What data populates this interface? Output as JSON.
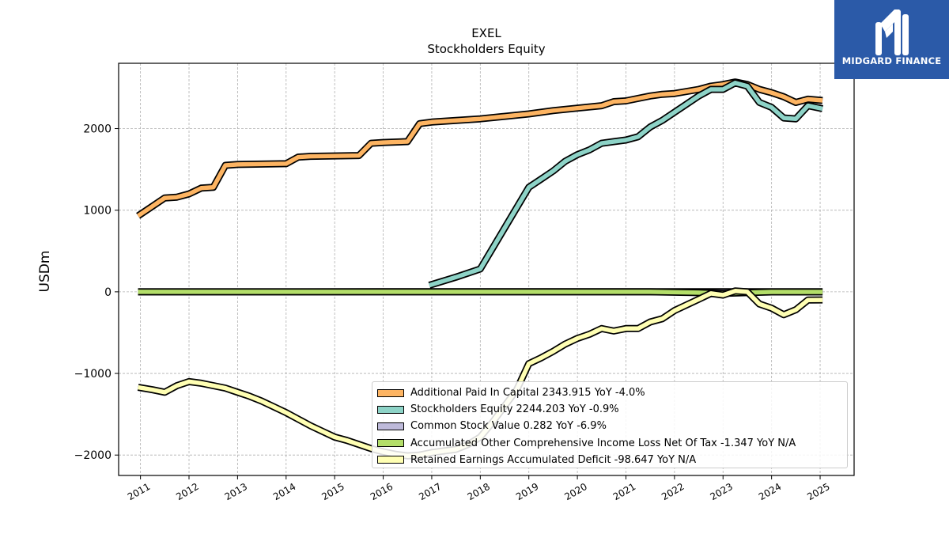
{
  "brand": {
    "name": "MIDGARD FINANCE",
    "logo_icon": "midgard-logo-icon",
    "color": "#2b5aa8"
  },
  "chart_data": {
    "type": "line",
    "title": "EXEL",
    "subtitle": "Stockholders  Equity",
    "ylabel": "USDm",
    "xlim": [
      2010.55,
      2025.7
    ],
    "ylim": [
      -2250,
      2800
    ],
    "y_ticks": [
      -2000,
      -1000,
      0,
      1000,
      2000
    ],
    "y_tick_labels": [
      "−2000",
      "−1000",
      "0",
      "1000",
      "2000"
    ],
    "x_ticks": [
      2011,
      2012,
      2013,
      2014,
      2015,
      2016,
      2017,
      2018,
      2019,
      2020,
      2021,
      2022,
      2023,
      2024,
      2025
    ],
    "x_tick_labels": [
      "2011",
      "2012",
      "2013",
      "2014",
      "2015",
      "2016",
      "2017",
      "2018",
      "2019",
      "2020",
      "2021",
      "2022",
      "2023",
      "2024",
      "2025"
    ],
    "grid": true,
    "legend_position": "lower-right",
    "series": [
      {
        "name": "Additional Paid In Capital",
        "legend": "Additional Paid In Capital  2343.915 YoY -4.0%",
        "color": "#fdb462",
        "points": [
          [
            2010.95,
            930
          ],
          [
            2011.2,
            1030
          ],
          [
            2011.5,
            1150
          ],
          [
            2011.75,
            1160
          ],
          [
            2012.0,
            1200
          ],
          [
            2012.25,
            1270
          ],
          [
            2012.5,
            1280
          ],
          [
            2012.75,
            1550
          ],
          [
            2013.0,
            1560
          ],
          [
            2013.5,
            1565
          ],
          [
            2014.0,
            1570
          ],
          [
            2014.25,
            1650
          ],
          [
            2014.5,
            1660
          ],
          [
            2015.0,
            1665
          ],
          [
            2015.5,
            1670
          ],
          [
            2015.75,
            1820
          ],
          [
            2016.0,
            1830
          ],
          [
            2016.5,
            1840
          ],
          [
            2016.75,
            2060
          ],
          [
            2017.0,
            2080
          ],
          [
            2017.5,
            2100
          ],
          [
            2018.0,
            2120
          ],
          [
            2018.5,
            2150
          ],
          [
            2019.0,
            2180
          ],
          [
            2019.5,
            2220
          ],
          [
            2020.0,
            2250
          ],
          [
            2020.5,
            2280
          ],
          [
            2020.75,
            2330
          ],
          [
            2021.0,
            2340
          ],
          [
            2021.5,
            2400
          ],
          [
            2021.75,
            2420
          ],
          [
            2022.0,
            2430
          ],
          [
            2022.5,
            2480
          ],
          [
            2022.75,
            2520
          ],
          [
            2023.0,
            2540
          ],
          [
            2023.25,
            2570
          ],
          [
            2023.5,
            2540
          ],
          [
            2023.75,
            2480
          ],
          [
            2024.0,
            2440
          ],
          [
            2024.25,
            2390
          ],
          [
            2024.5,
            2320
          ],
          [
            2024.75,
            2360
          ],
          [
            2025.05,
            2344
          ]
        ]
      },
      {
        "name": "Stockholders Equity",
        "legend": "Stockholders Equity  2244.203 YoY -0.9%",
        "color": "#8dd3c7",
        "points": [
          [
            2016.95,
            80
          ],
          [
            2017.5,
            180
          ],
          [
            2018.0,
            280
          ],
          [
            2018.5,
            780
          ],
          [
            2019.0,
            1280
          ],
          [
            2019.25,
            1380
          ],
          [
            2019.5,
            1480
          ],
          [
            2019.75,
            1600
          ],
          [
            2020.0,
            1680
          ],
          [
            2020.25,
            1740
          ],
          [
            2020.5,
            1820
          ],
          [
            2020.75,
            1840
          ],
          [
            2021.0,
            1860
          ],
          [
            2021.25,
            1900
          ],
          [
            2021.5,
            2020
          ],
          [
            2021.75,
            2100
          ],
          [
            2022.0,
            2200
          ],
          [
            2022.25,
            2300
          ],
          [
            2022.5,
            2400
          ],
          [
            2022.75,
            2480
          ],
          [
            2023.0,
            2480
          ],
          [
            2023.25,
            2560
          ],
          [
            2023.5,
            2520
          ],
          [
            2023.75,
            2320
          ],
          [
            2024.0,
            2260
          ],
          [
            2024.25,
            2130
          ],
          [
            2024.5,
            2120
          ],
          [
            2024.75,
            2280
          ],
          [
            2025.05,
            2244
          ]
        ]
      },
      {
        "name": "Common Stock Value",
        "legend": "Common Stock Value  0.282 YoY -6.9%",
        "color": "#bebada",
        "points": [
          [
            2010.95,
            0.2
          ],
          [
            2013.0,
            0.2
          ],
          [
            2016.0,
            0.3
          ],
          [
            2019.0,
            0.3
          ],
          [
            2022.0,
            0.3
          ],
          [
            2025.05,
            0.282
          ]
        ]
      },
      {
        "name": "Accumulated Other Comprehensive Income Loss Net Of Tax",
        "legend": "Accumulated Other Comprehensive Income Loss Net Of Tax  -1.347 YoY N/A",
        "color": "#b3de69",
        "points": [
          [
            2010.95,
            0
          ],
          [
            2014.0,
            0
          ],
          [
            2017.0,
            0
          ],
          [
            2019.0,
            0
          ],
          [
            2020.5,
            0
          ],
          [
            2021.5,
            0
          ],
          [
            2022.5,
            -10
          ],
          [
            2023.0,
            -20
          ],
          [
            2023.5,
            -10
          ],
          [
            2024.0,
            -1
          ],
          [
            2025.05,
            -1.347
          ]
        ]
      },
      {
        "name": "Retained Earnings Accumulated Deficit",
        "legend": "Retained Earnings Accumulated Deficit  -98.647 YoY N/A",
        "color": "#ffffb3",
        "points": [
          [
            2010.95,
            -1170
          ],
          [
            2011.25,
            -1200
          ],
          [
            2011.5,
            -1230
          ],
          [
            2011.75,
            -1150
          ],
          [
            2012.0,
            -1100
          ],
          [
            2012.25,
            -1120
          ],
          [
            2012.5,
            -1150
          ],
          [
            2012.75,
            -1180
          ],
          [
            2013.0,
            -1230
          ],
          [
            2013.25,
            -1280
          ],
          [
            2013.5,
            -1340
          ],
          [
            2013.75,
            -1410
          ],
          [
            2014.0,
            -1480
          ],
          [
            2014.25,
            -1560
          ],
          [
            2014.5,
            -1640
          ],
          [
            2014.75,
            -1710
          ],
          [
            2015.0,
            -1780
          ],
          [
            2015.25,
            -1820
          ],
          [
            2015.5,
            -1870
          ],
          [
            2015.75,
            -1920
          ],
          [
            2016.0,
            -1960
          ],
          [
            2016.25,
            -1990
          ],
          [
            2016.5,
            -2010
          ],
          [
            2016.75,
            -2000
          ],
          [
            2017.0,
            -1970
          ],
          [
            2017.25,
            -1950
          ],
          [
            2017.5,
            -1930
          ],
          [
            2017.75,
            -1870
          ],
          [
            2018.0,
            -1780
          ],
          [
            2018.25,
            -1600
          ],
          [
            2018.5,
            -1400
          ],
          [
            2018.75,
            -1200
          ],
          [
            2019.0,
            -880
          ],
          [
            2019.25,
            -810
          ],
          [
            2019.5,
            -730
          ],
          [
            2019.75,
            -640
          ],
          [
            2020.0,
            -570
          ],
          [
            2020.25,
            -520
          ],
          [
            2020.5,
            -450
          ],
          [
            2020.75,
            -480
          ],
          [
            2021.0,
            -450
          ],
          [
            2021.25,
            -450
          ],
          [
            2021.5,
            -370
          ],
          [
            2021.75,
            -330
          ],
          [
            2022.0,
            -230
          ],
          [
            2022.25,
            -160
          ],
          [
            2022.5,
            -90
          ],
          [
            2022.75,
            -20
          ],
          [
            2023.0,
            -40
          ],
          [
            2023.25,
            10
          ],
          [
            2023.5,
            0
          ],
          [
            2023.75,
            -150
          ],
          [
            2024.0,
            -200
          ],
          [
            2024.25,
            -280
          ],
          [
            2024.5,
            -220
          ],
          [
            2024.75,
            -100
          ],
          [
            2025.05,
            -99
          ]
        ]
      }
    ]
  }
}
